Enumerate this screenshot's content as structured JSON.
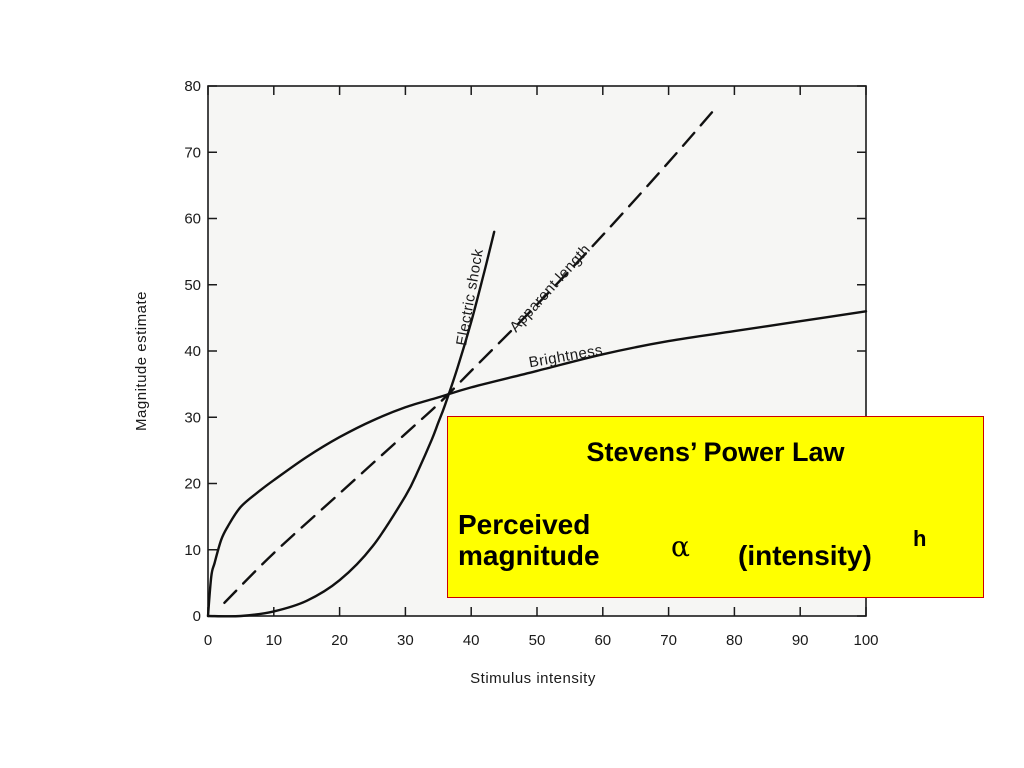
{
  "chart_data": {
    "type": "line",
    "xlabel": "Stimulus  intensity",
    "ylabel": "Magnitude  estimate",
    "xlim": [
      0,
      100
    ],
    "ylim": [
      0,
      80
    ],
    "x_ticks": [
      "0",
      "10",
      "20",
      "30",
      "40",
      "50",
      "60",
      "70",
      "80",
      "90",
      "100"
    ],
    "y_ticks": [
      "0",
      "10",
      "20",
      "30",
      "40",
      "50",
      "60",
      "70",
      "80"
    ],
    "grid": false,
    "series": [
      {
        "name": "Electric  shock",
        "style": "solid",
        "x": [
          0,
          5,
          10,
          15,
          20,
          25,
          30,
          32,
          34,
          35,
          36,
          38,
          40,
          42,
          43.5
        ],
        "y": [
          0,
          0,
          0.7,
          2.3,
          5.4,
          10.5,
          18.1,
          22.1,
          26.6,
          29.2,
          31.8,
          37.7,
          44.4,
          52,
          58
        ]
      },
      {
        "name": "Apparent length",
        "style": "dashed",
        "x": [
          2.5,
          10,
          20,
          30,
          35,
          40,
          50,
          60,
          70,
          77
        ],
        "y": [
          2,
          9.5,
          18.5,
          27.5,
          32,
          37,
          47,
          57.5,
          68.5,
          76.5
        ]
      },
      {
        "name": "Brightness",
        "style": "solid",
        "x": [
          0,
          0.5,
          1,
          2,
          3,
          5,
          8,
          10,
          15,
          20,
          25,
          30,
          35,
          40,
          50,
          60,
          70,
          80,
          90,
          100
        ],
        "y": [
          0,
          6,
          8,
          11.5,
          13.5,
          16.5,
          19,
          20.5,
          24,
          27,
          29.5,
          31.5,
          33,
          34.5,
          37,
          39.5,
          41.5,
          43,
          44.5,
          46
        ]
      }
    ]
  },
  "formula": {
    "title": "Stevens’ Power Law",
    "lhs": "Perceived\nmagnitude",
    "symbol": "α",
    "rhs": "(intensity)",
    "exponent": "h"
  }
}
